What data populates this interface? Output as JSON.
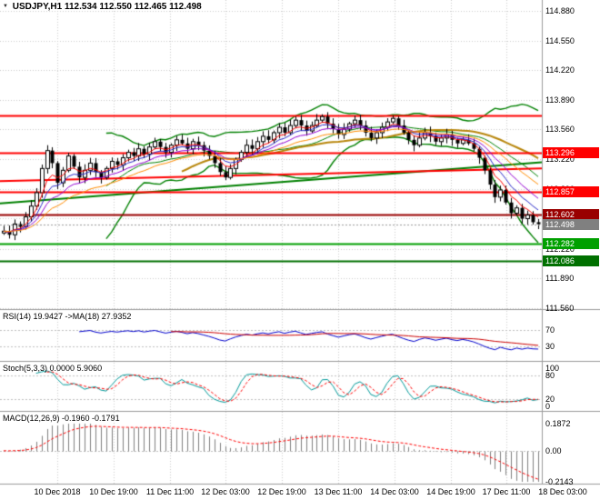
{
  "header": {
    "marker_icon": "▼",
    "symbol": "USDJPY,H1",
    "quotes": "112.534 112.550 112.465 112.498"
  },
  "indicator_labels": {
    "rsi": "RSI(14) 19.9427 ->MA(18) 27.9352",
    "stoch": "Stoch(5,3,3) 0.0000 5.9060",
    "macd": "MACD(12,26,9) -0.1960 -0.1791"
  },
  "scales": {
    "rsi": [
      {
        "text": "70",
        "value": 70
      },
      {
        "text": "30",
        "value": 30
      }
    ],
    "stoch": [
      {
        "text": "100",
        "value": 100
      },
      {
        "text": "80",
        "value": 80
      },
      {
        "text": "20",
        "value": 20
      },
      {
        "text": "0",
        "value": 0
      }
    ],
    "macd": [
      {
        "text": "0.1872",
        "value": 0.1872
      },
      {
        "text": "0.00",
        "value": 0
      },
      {
        "text": "-0.2143",
        "value": -0.2143
      }
    ]
  },
  "time_axis": [
    "10 Dec 2018",
    "10 Dec 19:00",
    "11 Dec 11:00",
    "12 Dec 03:00",
    "12 Dec 19:00",
    "13 Dec 11:00",
    "14 Dec 03:00",
    "14 Dec 19:00",
    "17 Dec 11:00",
    "18 Dec 03:00"
  ],
  "chart_data": {
    "type": "candlestick",
    "title": "USDJPY,H1",
    "ohlc_header": {
      "open": 112.534,
      "high": 112.55,
      "low": 112.465,
      "close": 112.498
    },
    "ylim": [
      111.55,
      115.0
    ],
    "price_ticks": [
      "114.880",
      "114.550",
      "114.220",
      "113.890",
      "113.560",
      "113.220",
      "112.890",
      "112.560",
      "112.220",
      "111.890",
      "111.560"
    ],
    "closes": [
      112.42,
      112.38,
      112.5,
      112.47,
      112.58,
      112.7,
      112.85,
      113.12,
      113.32,
      113.18,
      112.96,
      113.1,
      113.26,
      113.14,
      113.02,
      113.1,
      113.18,
      113.08,
      113.02,
      113.12,
      113.2,
      113.16,
      113.24,
      113.3,
      113.26,
      113.34,
      113.28,
      113.36,
      113.42,
      113.36,
      113.3,
      113.38,
      113.44,
      113.4,
      113.34,
      113.42,
      113.38,
      113.32,
      113.26,
      113.18,
      113.08,
      113.02,
      113.12,
      113.22,
      113.3,
      113.38,
      113.34,
      113.42,
      113.48,
      113.44,
      113.52,
      113.58,
      113.52,
      113.6,
      113.66,
      113.6,
      113.54,
      113.6,
      113.66,
      113.7,
      113.62,
      113.56,
      113.5,
      113.56,
      113.62,
      113.66,
      113.6,
      113.52,
      113.46,
      113.52,
      113.58,
      113.64,
      113.68,
      113.6,
      113.52,
      113.44,
      113.38,
      113.46,
      113.52,
      113.48,
      113.42,
      113.46,
      113.5,
      113.44,
      113.4,
      113.44,
      113.4,
      113.34,
      113.24,
      113.1,
      112.94,
      112.8,
      112.88,
      112.74,
      112.62,
      112.68,
      112.56,
      112.6,
      112.52,
      112.498
    ],
    "horizontal_levels": [
      {
        "price": 113.71,
        "color": "#ff0000",
        "badge": false,
        "label": ""
      },
      {
        "price": 113.296,
        "color": "#ff0000",
        "badge": true,
        "label": "113.296"
      },
      {
        "price": 112.857,
        "color": "#ff0000",
        "badge": true,
        "label": "112.857"
      },
      {
        "price": 112.602,
        "color": "#990000",
        "badge": true,
        "label": "112.602"
      },
      {
        "price": 112.282,
        "color": "#00a000",
        "badge": true,
        "label": "112.282"
      },
      {
        "price": 112.086,
        "color": "#007000",
        "badge": true,
        "label": "112.086"
      }
    ],
    "current_price": {
      "value": 112.498,
      "label": "112.498",
      "badge_color": "#808080",
      "line_color": "#999999"
    },
    "trendlines": [
      {
        "p1": 112.73,
        "p2": 113.19,
        "color": "#008000",
        "width": 2
      },
      {
        "p1": 112.98,
        "p2": 113.12,
        "color": "#ff0000",
        "width": 2
      }
    ],
    "overlays": {
      "bollinger": {
        "period": 20,
        "deviation": 2,
        "color": "#008000"
      },
      "ma_fan": [
        {
          "period": 5,
          "color": "#ff0000"
        },
        {
          "period": 8,
          "color": "#2929c8"
        },
        {
          "period": 13,
          "color": "#9400d3"
        },
        {
          "period": 21,
          "color": "#ff8c00"
        }
      ],
      "slow_ma": {
        "period": 34,
        "color": "#b8860b"
      }
    },
    "indicators": {
      "rsi": {
        "period": 14,
        "ma_period": 18,
        "line_color": "#0000cd",
        "ma_color": "#cc0000",
        "levels": [
          70,
          30
        ]
      },
      "stoch": {
        "k": 5,
        "d": 3,
        "slowing": 3,
        "k_color": "#009999",
        "d_color": "#ff0000",
        "levels": [
          80,
          20
        ]
      },
      "macd": {
        "fast": 12,
        "slow": 26,
        "signal": 9,
        "hist_color": "#808080",
        "signal_color": "#ff0000",
        "ylim": [
          -0.2143,
          0.1872
        ]
      }
    }
  }
}
